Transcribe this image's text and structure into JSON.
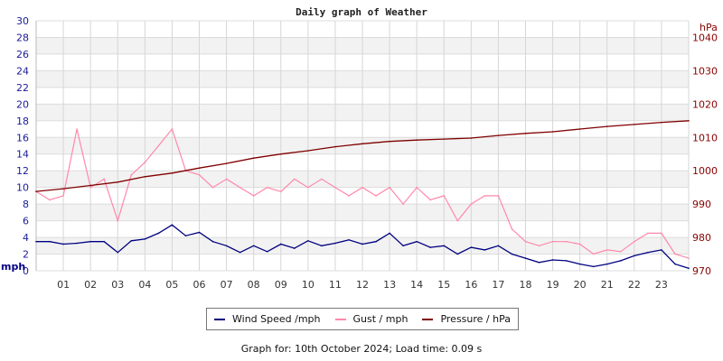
{
  "chart_data": {
    "type": "line",
    "title": "Daily graph of Weather",
    "left_axis": {
      "label": "mph",
      "range": [
        0,
        30
      ],
      "ticks": [
        0,
        2,
        4,
        6,
        8,
        10,
        12,
        14,
        16,
        18,
        20,
        22,
        24,
        26,
        28,
        30
      ],
      "color": "#1a1a9a"
    },
    "right_axis": {
      "label": "hPa",
      "range": [
        970,
        1045
      ],
      "ticks": [
        970,
        980,
        990,
        1000,
        1010,
        1020,
        1030,
        1040
      ],
      "color": "#8b0000"
    },
    "x_axis": {
      "range": [
        0,
        24
      ],
      "tick_labels": [
        "01",
        "02",
        "03",
        "04",
        "05",
        "06",
        "07",
        "08",
        "09",
        "10",
        "11",
        "12",
        "13",
        "14",
        "15",
        "16",
        "17",
        "18",
        "19",
        "20",
        "21",
        "22",
        "23"
      ]
    },
    "grid": true,
    "legend_placement": "bottom",
    "series": [
      {
        "name": "Wind Speed /mph",
        "axis": "left",
        "color": "#000080",
        "x": [
          0,
          0.5,
          1,
          1.5,
          2,
          2.5,
          3,
          3.5,
          4,
          4.5,
          5,
          5.5,
          6,
          6.5,
          7,
          7.5,
          8,
          8.5,
          9,
          9.5,
          10,
          10.5,
          11,
          11.5,
          12,
          12.5,
          13,
          13.5,
          14,
          14.5,
          15,
          15.5,
          16,
          16.5,
          17,
          17.5,
          18,
          18.5,
          19,
          19.5,
          20,
          20.5,
          21,
          21.5,
          22,
          22.5,
          23,
          23.5,
          24
        ],
        "values": [
          3.5,
          3.5,
          3.2,
          3.3,
          3.5,
          3.5,
          2.2,
          3.6,
          3.8,
          4.5,
          5.5,
          4.2,
          4.6,
          3.5,
          3.0,
          2.2,
          3.0,
          2.3,
          3.2,
          2.7,
          3.6,
          3.0,
          3.3,
          3.7,
          3.2,
          3.5,
          4.5,
          3.0,
          3.5,
          2.8,
          3.0,
          2.0,
          2.8,
          2.5,
          3.0,
          2.0,
          1.5,
          1.0,
          1.3,
          1.2,
          0.8,
          0.5,
          0.8,
          1.2,
          1.8,
          2.2,
          2.5,
          0.8,
          0.3
        ]
      },
      {
        "name": "Gust / mph",
        "axis": "left",
        "color": "#ff88aa",
        "x": [
          0,
          0.5,
          1,
          1.5,
          2,
          2.5,
          3,
          3.5,
          4,
          4.5,
          5,
          5.5,
          6,
          6.5,
          7,
          7.5,
          8,
          8.5,
          9,
          9.5,
          10,
          10.5,
          11,
          11.5,
          12,
          12.5,
          13,
          13.5,
          14,
          14.5,
          15,
          15.5,
          16,
          16.5,
          17,
          17.5,
          18,
          18.5,
          19,
          19.5,
          20,
          20.5,
          21,
          21.5,
          22,
          22.5,
          23,
          23.5,
          24
        ],
        "values": [
          9.5,
          8.5,
          9,
          17,
          10,
          11,
          6,
          11.5,
          13,
          15,
          17,
          12,
          11.5,
          10,
          11,
          10,
          9,
          10,
          9.5,
          11,
          10,
          11,
          10,
          9,
          10,
          9,
          10,
          8,
          10,
          8.5,
          9,
          6,
          8,
          9,
          9,
          5,
          3.5,
          3,
          3.5,
          3.5,
          3.2,
          2,
          2.5,
          2.3,
          3.5,
          4.5,
          4.5,
          2,
          1.5
        ]
      },
      {
        "name": "Pressure / hPa",
        "axis": "right",
        "color": "#800000",
        "x": [
          0,
          1,
          2,
          3,
          4,
          5,
          6,
          7,
          8,
          9,
          10,
          11,
          12,
          13,
          14,
          15,
          16,
          17,
          18,
          19,
          20,
          21,
          22,
          23,
          24
        ],
        "values": [
          993.8,
          994.6,
          995.6,
          996.6,
          998.2,
          999.3,
          1000.8,
          1002.2,
          1003.8,
          1005,
          1006,
          1007.2,
          1008.1,
          1008.8,
          1009.2,
          1009.5,
          1009.8,
          1010.6,
          1011.2,
          1011.7,
          1012.5,
          1013.3,
          1013.9,
          1014.5,
          1015
        ]
      }
    ]
  },
  "footer": "Graph for: 10th October 2024; Load time: 0.09 s"
}
